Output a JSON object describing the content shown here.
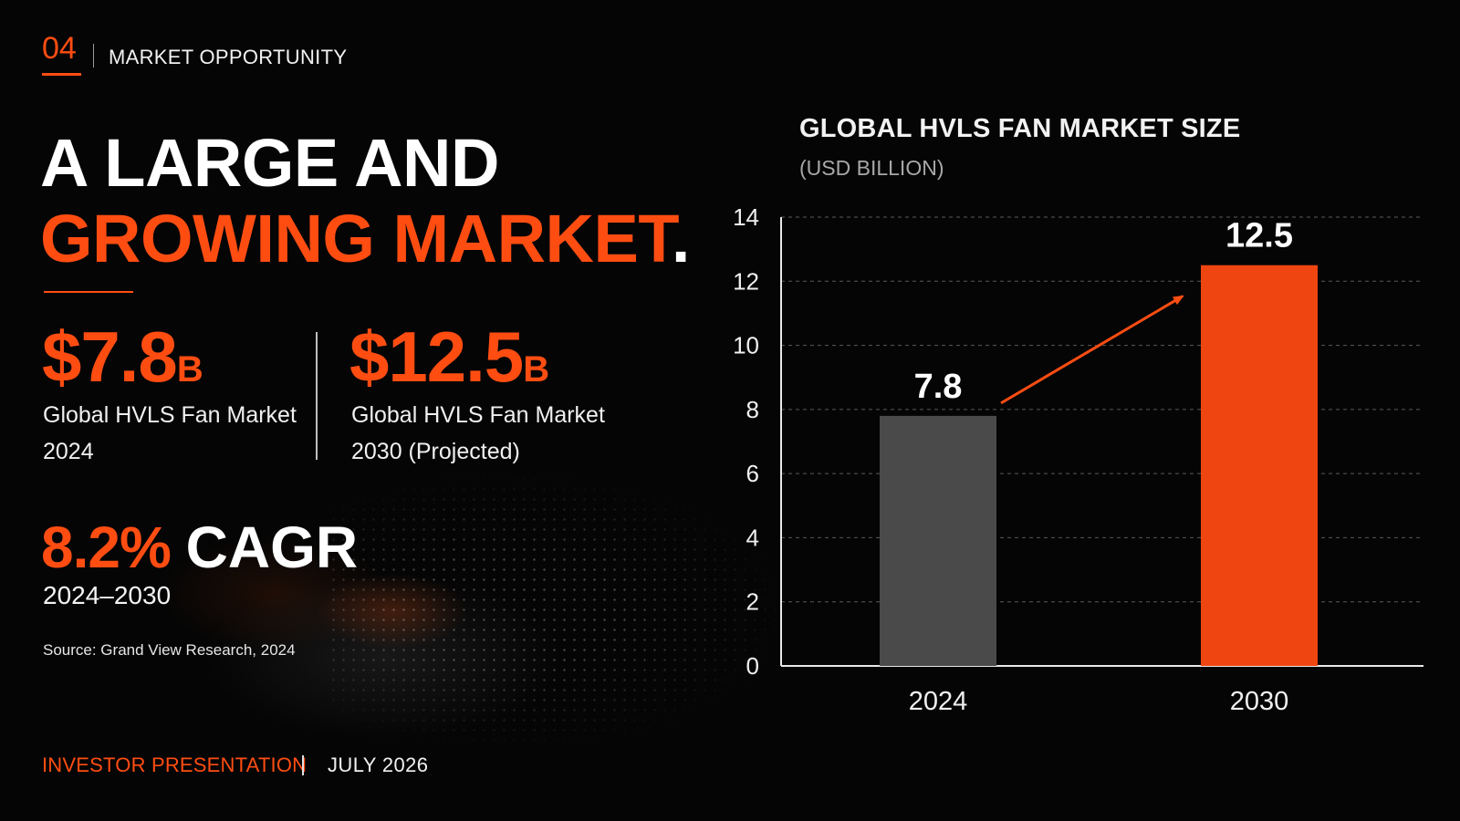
{
  "header": {
    "section_number": "04",
    "section_label": "MARKET OPPORTUNITY"
  },
  "headline": {
    "line1": "A LARGE AND",
    "line2": "GROWING MARKET",
    "period": "."
  },
  "stats": [
    {
      "value": "$7.8",
      "unit": "B",
      "desc_line1": "Global HVLS Fan Market",
      "desc_line2": "2024"
    },
    {
      "value": "$12.5",
      "unit": "B",
      "desc_line1": "Global HVLS Fan Market",
      "desc_line2": "2030 (Projected)"
    }
  ],
  "cagr": {
    "percent": "8.2%",
    "label": "CAGR",
    "years": "2024–2030"
  },
  "source": "Source: Grand View Research, 2024",
  "footer": {
    "left": "INVESTOR PRESENTATION",
    "right": "JULY 2026"
  },
  "colors": {
    "accent": "#ff4d12",
    "bar_2024": "#4a4a4a",
    "bar_2030": "#ef4511",
    "background": "#050505"
  },
  "chart_data": {
    "type": "bar",
    "title": "GLOBAL HVLS FAN MARKET SIZE",
    "subtitle": "(USD BILLION)",
    "categories": [
      "2024",
      "2030"
    ],
    "values": [
      7.8,
      12.5
    ],
    "data_labels": [
      "7.8",
      "12.5"
    ],
    "ylim": [
      0,
      14
    ],
    "yticks": [
      0,
      2,
      4,
      6,
      8,
      10,
      12,
      14
    ],
    "grid": true,
    "annotation": "growth arrow from 2024 bar to 2030 bar"
  }
}
